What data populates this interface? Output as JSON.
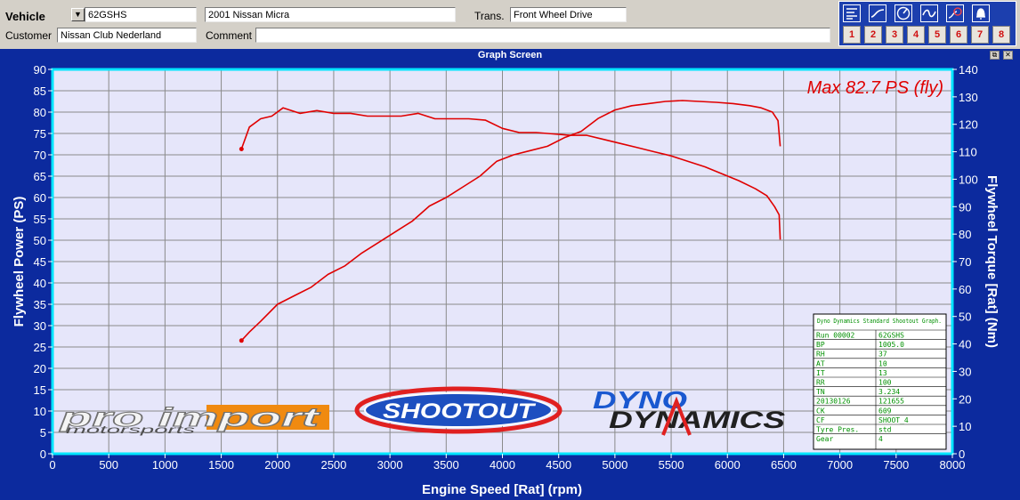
{
  "header": {
    "vehicle_label": "Vehicle",
    "vehicle_id": "62GSHS",
    "vehicle_desc": "2001 Nissan Micra",
    "trans_label": "Trans.",
    "trans_value": "Front Wheel Drive",
    "customer_label": "Customer",
    "customer_value": "Nissan Club Nederland",
    "comment_label": "Comment",
    "comment_value": ""
  },
  "toolbar": {
    "buttons": [
      "menu-icon",
      "curve-icon",
      "gauge-icon",
      "wave-icon",
      "timer-icon",
      "bell-icon"
    ],
    "numbers": [
      "1",
      "2",
      "3",
      "4",
      "5",
      "6",
      "7",
      "8"
    ]
  },
  "window": {
    "title": "Graph Screen"
  },
  "logos": {
    "proimport": "pro import",
    "proimport_sub": "motorsports",
    "shootout": "SHOOTOUT",
    "dyno1": "DYNO",
    "dyno2": "DYNAMICS"
  },
  "info_table": {
    "title": "Dyno Dynamics Standard Shootout Graph.",
    "rows": [
      [
        "Run 00002",
        "62GSHS"
      ],
      [
        "BP",
        "1005.0"
      ],
      [
        "RH",
        "37"
      ],
      [
        "AT",
        "10"
      ],
      [
        "IT",
        "13"
      ],
      [
        "RR",
        "100"
      ],
      [
        "TN",
        "3.234"
      ],
      [
        "20130126",
        "121655"
      ],
      [
        "CK",
        "609"
      ],
      [
        "CF",
        "SHOOT_4"
      ],
      [
        "Tyre Pres.",
        "std"
      ],
      [
        "Gear",
        "4"
      ]
    ]
  },
  "colors": {
    "curve": "#e00000",
    "plot_bg": "#e6e6fa",
    "frame": "#00e5ff",
    "background": "#0c2a9e"
  },
  "chart_data": {
    "type": "line",
    "annotation": "Max 82.7 PS (fly)",
    "xlabel": "Engine Speed [Rat] (rpm)",
    "ylabel": "Flywheel Power (PS)",
    "y2label": "Flywheel Torque [Rat] (Nm)",
    "xlim": [
      0,
      8000
    ],
    "ylim": [
      0,
      90
    ],
    "y2lim": [
      0,
      140
    ],
    "xticks": [
      0,
      500,
      1000,
      1500,
      2000,
      2500,
      3000,
      3500,
      4000,
      4500,
      5000,
      5500,
      6000,
      6500,
      7000,
      7500,
      8000
    ],
    "yticks": [
      0,
      5,
      10,
      15,
      20,
      25,
      30,
      35,
      40,
      45,
      50,
      55,
      60,
      65,
      70,
      75,
      80,
      85,
      90
    ],
    "y2ticks": [
      0,
      10,
      20,
      30,
      40,
      50,
      60,
      70,
      80,
      90,
      100,
      110,
      120,
      130,
      140
    ],
    "grid": true,
    "series": [
      {
        "axis": "left",
        "x": [
          1680,
          1750,
          1850,
          2000,
          2150,
          2300,
          2450,
          2600,
          2750,
          2900,
          3050,
          3200,
          3350,
          3500,
          3650,
          3800,
          3950,
          4100,
          4250,
          4400,
          4550,
          4700,
          4850,
          5000,
          5150,
          5300,
          5450,
          5600,
          5750,
          5900,
          6050,
          6200,
          6300,
          6400,
          6450,
          6470
        ],
        "y": [
          26.5,
          28.5,
          31,
          35,
          37,
          39,
          42,
          44,
          47,
          49.5,
          52,
          54.5,
          58,
          60,
          62.5,
          65,
          68.5,
          70,
          71,
          72,
          74,
          75.5,
          78.5,
          80.5,
          81.5,
          82,
          82.5,
          82.7,
          82.5,
          82.3,
          82,
          81.5,
          81,
          80,
          78,
          72
        ]
      },
      {
        "axis": "right",
        "x": [
          1680,
          1750,
          1850,
          1950,
          2050,
          2200,
          2350,
          2500,
          2650,
          2800,
          2950,
          3100,
          3250,
          3400,
          3550,
          3700,
          3850,
          4000,
          4150,
          4300,
          4450,
          4600,
          4750,
          4900,
          5050,
          5200,
          5350,
          5500,
          5650,
          5800,
          5950,
          6100,
          6250,
          6350,
          6420,
          6460,
          6470
        ],
        "y": [
          111,
          119,
          122,
          123,
          126,
          124,
          125,
          124,
          124,
          123,
          123,
          123,
          124,
          122,
          122,
          122,
          121.5,
          118.5,
          117,
          117,
          116.5,
          116,
          116,
          114.5,
          113,
          111.5,
          110,
          108.5,
          106.5,
          104.5,
          102,
          99.5,
          96.5,
          94,
          90,
          87,
          78
        ]
      }
    ]
  }
}
